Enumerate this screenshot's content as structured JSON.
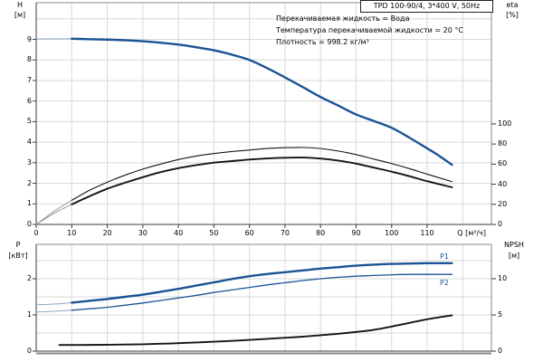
{
  "title_box": {
    "label": "TPD 100-90/4, 3*400 V, 50Hz"
  },
  "annotations": {
    "line1": "Перекачиваемая жидкость = Вода",
    "line2": "Температура перекачиваемой жидкости = 20 °C",
    "line3": "Плотность = 998.2 кг/м³"
  },
  "axes": {
    "h_title": "H",
    "h_unit": "[м]",
    "eta_title": "eta",
    "eta_unit": "[%]",
    "q_title": "Q [м³/ч]",
    "p_title": "P",
    "p_unit": "[кВт]",
    "npsh_title": "NPSH",
    "npsh_unit": "[м]"
  },
  "curve_labels": {
    "p1": "P1",
    "p2": "P2"
  },
  "colors": {
    "curve_blue": "#1b5394",
    "curve_black": "#141414",
    "lead_blue": "#92a6c2",
    "lead_black": "#9a9a9a",
    "grid": "#d8d8d8",
    "axis": "#8a8a8a",
    "axis_dark": "#3a3a3a",
    "text": "#000000",
    "background": "#ffffff"
  },
  "chart_data": [
    {
      "type": "line",
      "title": "TPD 100-90/4, 3*400 V, 50Hz",
      "xlabel": "Q [м³/ч]",
      "ylabel_left": "H [м]",
      "ylabel_right": "eta [%]",
      "xlim": [
        0,
        128
      ],
      "x_ticks": [
        0,
        10,
        20,
        30,
        40,
        50,
        60,
        70,
        80,
        90,
        100,
        110
      ],
      "x_grid": [
        10,
        20,
        30,
        40,
        50,
        60,
        70,
        80,
        90,
        100,
        110,
        120
      ],
      "ylim_left": [
        0,
        10.8
      ],
      "y_ticks_left": [
        0,
        1,
        2,
        3,
        4,
        5,
        6,
        7,
        8,
        9
      ],
      "y_grid_left": [
        1,
        2,
        3,
        4,
        5,
        6,
        7,
        8,
        9,
        10
      ],
      "ylim_right": [
        0,
        100
      ],
      "y_ticks_right": [
        0,
        20,
        40,
        60,
        80,
        100
      ],
      "grid": true,
      "series": [
        {
          "name": "H",
          "axis": "left",
          "color_key": "blue",
          "emphasis": "thick",
          "thin_below": 7,
          "points": [
            [
              0,
              9.02
            ],
            [
              5,
              9.03
            ],
            [
              10,
              9.03
            ],
            [
              15,
              9.01
            ],
            [
              20,
              8.99
            ],
            [
              25,
              8.96
            ],
            [
              30,
              8.91
            ],
            [
              35,
              8.84
            ],
            [
              40,
              8.75
            ],
            [
              45,
              8.62
            ],
            [
              50,
              8.47
            ],
            [
              55,
              8.26
            ],
            [
              60,
              8.0
            ],
            [
              65,
              7.6
            ],
            [
              70,
              7.15
            ],
            [
              75,
              6.68
            ],
            [
              80,
              6.2
            ],
            [
              85,
              5.78
            ],
            [
              90,
              5.35
            ],
            [
              95,
              5.03
            ],
            [
              100,
              4.7
            ],
            [
              105,
              4.22
            ],
            [
              110,
              3.7
            ],
            [
              113,
              3.38
            ],
            [
              117,
              2.9
            ]
          ]
        },
        {
          "name": "eta1",
          "axis": "right",
          "color_key": "black",
          "emphasis": "thin",
          "thin_below": 7,
          "points": [
            [
              0,
              0
            ],
            [
              5,
              13
            ],
            [
              10,
              24
            ],
            [
              15,
              34
            ],
            [
              20,
              42
            ],
            [
              25,
              49
            ],
            [
              30,
              55
            ],
            [
              35,
              60
            ],
            [
              40,
              64.5
            ],
            [
              45,
              68
            ],
            [
              50,
              70.5
            ],
            [
              55,
              72.5
            ],
            [
              60,
              74
            ],
            [
              65,
              75.5
            ],
            [
              70,
              76.3
            ],
            [
              75,
              76.5
            ],
            [
              80,
              75.5
            ],
            [
              85,
              73
            ],
            [
              90,
              69.5
            ],
            [
              95,
              65
            ],
            [
              100,
              60.5
            ],
            [
              105,
              55.5
            ],
            [
              110,
              50
            ],
            [
              117,
              42.5
            ]
          ]
        },
        {
          "name": "eta2",
          "axis": "right",
          "color_key": "black",
          "emphasis": "medium",
          "thin_below": 7,
          "points": [
            [
              0,
              0
            ],
            [
              5,
              11
            ],
            [
              10,
              20
            ],
            [
              15,
              28
            ],
            [
              20,
              35.5
            ],
            [
              25,
              41.5
            ],
            [
              30,
              47
            ],
            [
              35,
              52
            ],
            [
              40,
              56
            ],
            [
              45,
              59
            ],
            [
              50,
              61.5
            ],
            [
              55,
              63
            ],
            [
              60,
              64.5
            ],
            [
              65,
              65.6
            ],
            [
              70,
              66.3
            ],
            [
              75,
              66.5
            ],
            [
              80,
              65.5
            ],
            [
              85,
              63.5
            ],
            [
              90,
              60.5
            ],
            [
              95,
              56.5
            ],
            [
              100,
              52.5
            ],
            [
              105,
              48
            ],
            [
              110,
              43
            ],
            [
              117,
              37
            ]
          ]
        }
      ]
    },
    {
      "type": "line",
      "xlabel": "",
      "ylabel_left": "P [кВт]",
      "ylabel_right": "NPSH [м]",
      "xlim": [
        0,
        128
      ],
      "x_ticks": [],
      "x_grid": [
        10,
        20,
        30,
        40,
        50,
        60,
        70,
        80,
        90,
        100,
        110,
        120
      ],
      "ylim_left": [
        0,
        2.95
      ],
      "y_ticks_left": [
        0,
        1,
        2
      ],
      "y_grid_left": [
        0.5,
        1,
        1.5,
        2,
        2.5
      ],
      "ylim_right": [
        0,
        14.75
      ],
      "y_ticks_right": [
        0,
        5,
        10
      ],
      "grid": true,
      "series": [
        {
          "name": "P1",
          "label": "P1",
          "axis": "left",
          "color_key": "blue",
          "emphasis": "thick",
          "thin_below": 7,
          "points": [
            [
              0,
              1.28
            ],
            [
              5,
              1.3
            ],
            [
              10,
              1.34
            ],
            [
              15,
              1.39
            ],
            [
              20,
              1.44
            ],
            [
              25,
              1.5
            ],
            [
              30,
              1.56
            ],
            [
              35,
              1.64
            ],
            [
              40,
              1.72
            ],
            [
              45,
              1.81
            ],
            [
              50,
              1.9
            ],
            [
              55,
              1.99
            ],
            [
              60,
              2.07
            ],
            [
              65,
              2.13
            ],
            [
              70,
              2.18
            ],
            [
              75,
              2.23
            ],
            [
              80,
              2.28
            ],
            [
              85,
              2.32
            ],
            [
              90,
              2.36
            ],
            [
              95,
              2.39
            ],
            [
              100,
              2.41
            ],
            [
              105,
              2.42
            ],
            [
              110,
              2.43
            ],
            [
              117,
              2.43
            ]
          ]
        },
        {
          "name": "P2",
          "label": "P2",
          "axis": "left",
          "color_key": "blue",
          "emphasis": "thin_blue",
          "thin_below": 7,
          "points": [
            [
              0,
              1.08
            ],
            [
              5,
              1.1
            ],
            [
              10,
              1.13
            ],
            [
              15,
              1.17
            ],
            [
              20,
              1.21
            ],
            [
              25,
              1.27
            ],
            [
              30,
              1.33
            ],
            [
              35,
              1.4
            ],
            [
              40,
              1.47
            ],
            [
              45,
              1.54
            ],
            [
              50,
              1.62
            ],
            [
              55,
              1.69
            ],
            [
              60,
              1.76
            ],
            [
              65,
              1.83
            ],
            [
              70,
              1.89
            ],
            [
              75,
              1.95
            ],
            [
              80,
              2.0
            ],
            [
              85,
              2.04
            ],
            [
              90,
              2.07
            ],
            [
              95,
              2.09
            ],
            [
              100,
              2.11
            ],
            [
              105,
              2.12
            ],
            [
              110,
              2.12
            ],
            [
              117,
              2.12
            ]
          ]
        },
        {
          "name": "NPSH",
          "axis": "right",
          "color_key": "black",
          "emphasis": "medium",
          "points": [
            [
              6.5,
              0.85
            ],
            [
              10,
              0.85
            ],
            [
              15,
              0.86
            ],
            [
              20,
              0.88
            ],
            [
              25,
              0.91
            ],
            [
              30,
              0.95
            ],
            [
              35,
              1.02
            ],
            [
              40,
              1.1
            ],
            [
              45,
              1.2
            ],
            [
              50,
              1.3
            ],
            [
              55,
              1.42
            ],
            [
              60,
              1.55
            ],
            [
              65,
              1.7
            ],
            [
              70,
              1.85
            ],
            [
              75,
              2.0
            ],
            [
              80,
              2.2
            ],
            [
              85,
              2.4
            ],
            [
              90,
              2.65
            ],
            [
              95,
              2.95
            ],
            [
              100,
              3.4
            ],
            [
              105,
              3.9
            ],
            [
              110,
              4.4
            ],
            [
              117,
              4.95
            ]
          ]
        }
      ]
    }
  ]
}
